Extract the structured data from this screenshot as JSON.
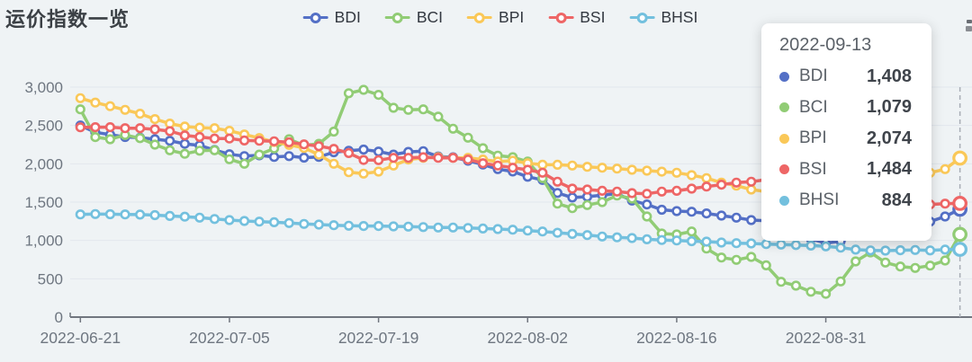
{
  "page": {
    "title": "运价指数一览"
  },
  "tooltip": {
    "date": "2022-09-13",
    "rows": [
      {
        "name": "BDI",
        "value": "1,408",
        "color": "#5470C6"
      },
      {
        "name": "BCI",
        "value": "1,079",
        "color": "#91CC75"
      },
      {
        "name": "BPI",
        "value": "2,074",
        "color": "#FAC858"
      },
      {
        "name": "BSI",
        "value": "1,484",
        "color": "#EE6666"
      },
      {
        "name": "BHSI",
        "value": "884",
        "color": "#73C0DE"
      }
    ]
  },
  "chart_data": {
    "type": "line",
    "title": "运价指数一览",
    "legend_position": "top",
    "grid": true,
    "ylim": [
      0,
      3000
    ],
    "ytick_step": 500,
    "ytick_labels": [
      "0",
      "500",
      "1,000",
      "1,500",
      "2,000",
      "2,500",
      "3,000"
    ],
    "xtick_indices": [
      0,
      10,
      20,
      30,
      40,
      50
    ],
    "xtick_labels": [
      "2022-06-21",
      "2022-07-05",
      "2022-07-19",
      "2022-08-02",
      "2022-08-16",
      "2022-08-31"
    ],
    "hover_index": 59,
    "hover_date": "2022-09-13",
    "x": [
      "2022-06-21",
      "2022-06-22",
      "2022-06-23",
      "2022-06-24",
      "2022-06-27",
      "2022-06-28",
      "2022-06-29",
      "2022-06-30",
      "2022-07-01",
      "2022-07-04",
      "2022-07-05",
      "2022-07-06",
      "2022-07-07",
      "2022-07-08",
      "2022-07-11",
      "2022-07-12",
      "2022-07-13",
      "2022-07-14",
      "2022-07-15",
      "2022-07-18",
      "2022-07-19",
      "2022-07-20",
      "2022-07-21",
      "2022-07-22",
      "2022-07-25",
      "2022-07-26",
      "2022-07-27",
      "2022-07-28",
      "2022-07-29",
      "2022-08-01",
      "2022-08-02",
      "2022-08-03",
      "2022-08-04",
      "2022-08-05",
      "2022-08-08",
      "2022-08-09",
      "2022-08-10",
      "2022-08-11",
      "2022-08-12",
      "2022-08-15",
      "2022-08-16",
      "2022-08-17",
      "2022-08-18",
      "2022-08-19",
      "2022-08-22",
      "2022-08-23",
      "2022-08-24",
      "2022-08-25",
      "2022-08-26",
      "2022-08-30",
      "2022-08-31",
      "2022-09-01",
      "2022-09-02",
      "2022-09-05",
      "2022-09-06",
      "2022-09-07",
      "2022-09-08",
      "2022-09-09",
      "2022-09-12",
      "2022-09-13"
    ],
    "series": [
      {
        "name": "BDI",
        "color": "#5470C6",
        "values": [
          2500,
          2410,
          2380,
          2350,
          2340,
          2320,
          2300,
          2260,
          2240,
          2180,
          2125,
          2100,
          2110,
          2090,
          2100,
          2080,
          2090,
          2150,
          2170,
          2185,
          2160,
          2120,
          2155,
          2165,
          2095,
          2085,
          2040,
          1990,
          1930,
          1900,
          1830,
          1790,
          1620,
          1560,
          1570,
          1590,
          1610,
          1520,
          1470,
          1400,
          1383,
          1375,
          1352,
          1324,
          1297,
          1266,
          1258,
          1266,
          1258,
          1020,
          965,
          990,
          1060,
          1090,
          1145,
          1185,
          1227,
          1246,
          1313,
          1408
        ]
      },
      {
        "name": "BCI",
        "color": "#91CC75",
        "values": [
          2711,
          2348,
          2320,
          2375,
          2334,
          2250,
          2176,
          2131,
          2170,
          2176,
          2059,
          2000,
          2120,
          2200,
          2320,
          2240,
          2260,
          2420,
          2920,
          2965,
          2899,
          2731,
          2703,
          2711,
          2614,
          2457,
          2340,
          2203,
          2106,
          2086,
          2028,
          1813,
          1480,
          1422,
          1461,
          1500,
          1586,
          1547,
          1313,
          1090,
          1078,
          1117,
          894,
          777,
          746,
          785,
          675,
          460,
          410,
          330,
          303,
          465,
          727,
          844,
          711,
          660,
          641,
          672,
          738,
          1079
        ]
      },
      {
        "name": "BPI",
        "color": "#FAC858",
        "values": [
          2856,
          2798,
          2751,
          2704,
          2653,
          2583,
          2524,
          2486,
          2472,
          2465,
          2430,
          2383,
          2336,
          2285,
          2246,
          2207,
          2120,
          2000,
          1890,
          1871,
          1898,
          1977,
          2055,
          2078,
          2086,
          2078,
          2078,
          2055,
          2028,
          2040,
          2008,
          1988,
          1988,
          1977,
          1961,
          1949,
          1937,
          1922,
          1910,
          1897,
          1883,
          1852,
          1813,
          1754,
          1715,
          1664,
          1637,
          1598,
          1570,
          1520,
          1480,
          1470,
          1500,
          1560,
          1650,
          1760,
          1871,
          1883,
          1930,
          2074
        ]
      },
      {
        "name": "BSI",
        "color": "#EE6666",
        "values": [
          2476,
          2477,
          2477,
          2465,
          2465,
          2449,
          2426,
          2371,
          2350,
          2330,
          2330,
          2304,
          2300,
          2293,
          2281,
          2254,
          2230,
          2195,
          2140,
          2050,
          2047,
          2078,
          2078,
          2086,
          2078,
          2078,
          2055,
          2008,
          1977,
          1949,
          1922,
          1883,
          1766,
          1676,
          1664,
          1648,
          1637,
          1617,
          1609,
          1637,
          1648,
          1676,
          1703,
          1727,
          1754,
          1766,
          1793,
          1781,
          1773,
          1720,
          1660,
          1610,
          1570,
          1530,
          1500,
          1480,
          1469,
          1469,
          1480,
          1484
        ]
      },
      {
        "name": "BHSI",
        "color": "#73C0DE",
        "values": [
          1340,
          1344,
          1342,
          1340,
          1337,
          1330,
          1320,
          1310,
          1297,
          1280,
          1266,
          1254,
          1246,
          1238,
          1227,
          1215,
          1207,
          1199,
          1192,
          1188,
          1188,
          1184,
          1180,
          1174,
          1168,
          1168,
          1162,
          1155,
          1148,
          1140,
          1129,
          1117,
          1100,
          1085,
          1070,
          1051,
          1041,
          1031,
          1015,
          1005,
          1000,
          990,
          984,
          973,
          965,
          961,
          953,
          946,
          940,
          933,
          922,
          906,
          880,
          870,
          867,
          872,
          875,
          870,
          880,
          884
        ]
      }
    ]
  }
}
